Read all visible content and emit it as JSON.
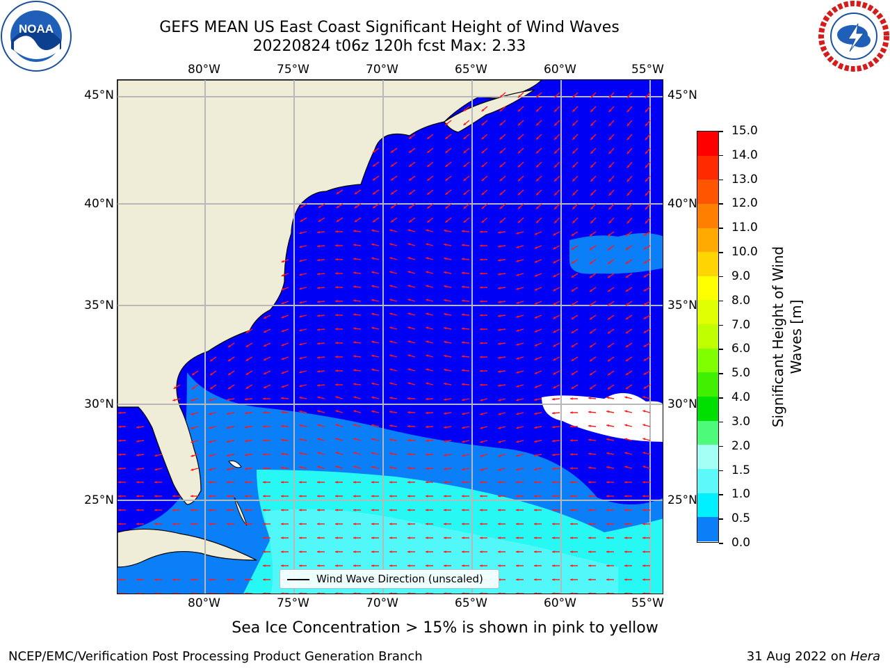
{
  "title": {
    "line1": "GEFS MEAN US East Coast Significant Height of Wind Waves",
    "line2": "20220824 t06z 120h fcst   Max: 2.33"
  },
  "logos": {
    "left": "NOAA",
    "right": "NATIONAL WEATHER SERVICE"
  },
  "map": {
    "longitude_labels": [
      "80°W",
      "75°W",
      "70°W",
      "65°W",
      "60°W",
      "55°W"
    ],
    "latitude_labels": [
      "45°N",
      "40°N",
      "35°N",
      "30°N",
      "25°N"
    ],
    "legend_label": "Wind Wave Direction (unscaled)",
    "colors": {
      "land": "#efecd8",
      "ocean_low": "#0000f5",
      "ocean_mid": "#0a7ff8",
      "ocean_high": "#28f8f4",
      "ocean_higher": "#5cf8fa",
      "arrows": "#ff1a1a",
      "grid": "#b8b8b8",
      "missing": "#ffffff"
    }
  },
  "colorbar": {
    "title": "Significant Height of Wind Waves [m]",
    "labels": [
      "15.0",
      "14.0",
      "13.0",
      "12.0",
      "11.0",
      "10.0",
      "9.0",
      "8.0",
      "7.0",
      "6.0",
      "5.0",
      "4.0",
      "3.0",
      "2.0",
      "1.5",
      "1.0",
      "0.5",
      "0.0"
    ],
    "colors": [
      "#ff0000",
      "#ff2a00",
      "#ff5500",
      "#ff8000",
      "#ffaa00",
      "#ffd500",
      "#ffff00",
      "#e0ff00",
      "#c0ff00",
      "#80ff00",
      "#40f000",
      "#00e000",
      "#4dfa7a",
      "#a4fff4",
      "#5cf8fa",
      "#00f0ff",
      "#0a7ff8",
      "#0000f5"
    ]
  },
  "footer": {
    "note": "Sea Ice Concentration > 15% is shown in pink to yellow",
    "left": "NCEP/EMC/Verification Post Processing Product Generation Branch",
    "right_date": "31 Aug 2022 on ",
    "right_host": "Hera"
  }
}
